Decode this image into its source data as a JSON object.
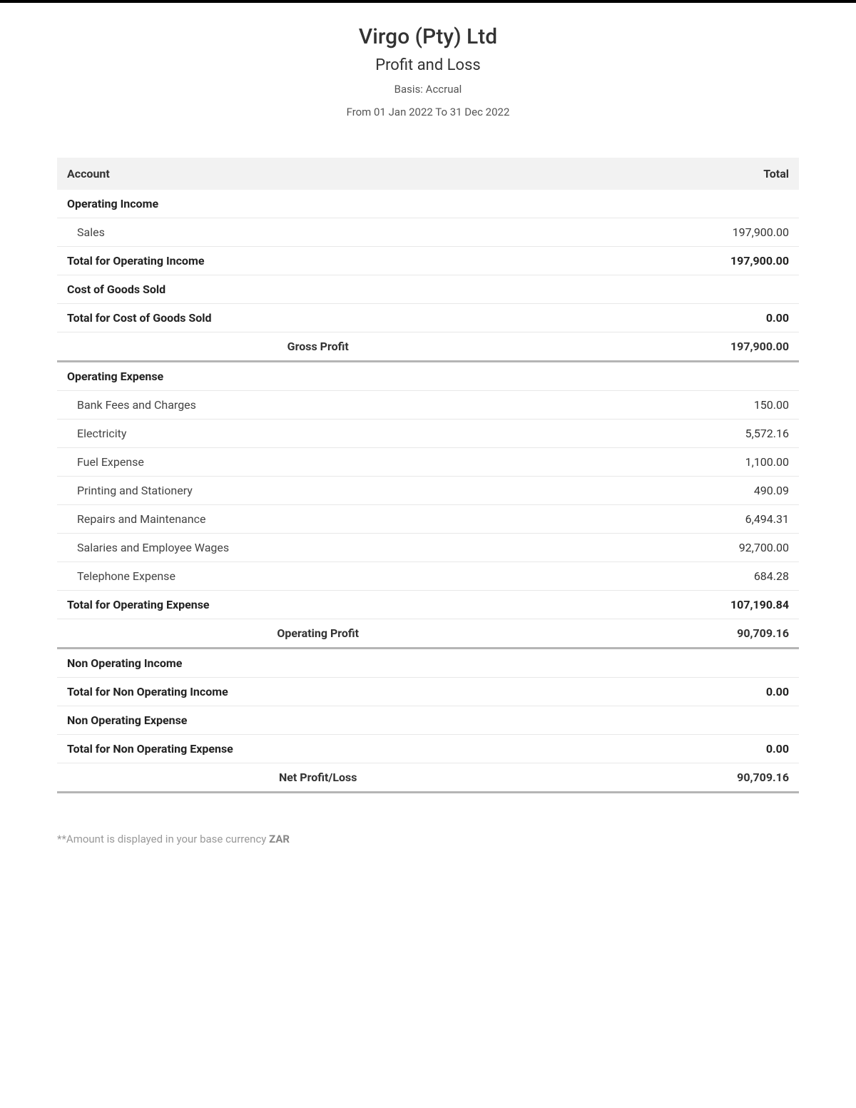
{
  "header": {
    "company_name": "Virgo (Pty) Ltd",
    "report_title": "Profit and Loss",
    "basis": "Basis: Accrual",
    "date_range": "From 01 Jan 2022 To 31 Dec 2022"
  },
  "table": {
    "columns": {
      "account": "Account",
      "total": "Total"
    },
    "sections": {
      "operating_income": {
        "label": "Operating Income",
        "items": {
          "sales": {
            "label": "Sales",
            "amount": "197,900.00"
          }
        },
        "total_label": "Total for Operating Income",
        "total_amount": "197,900.00"
      },
      "cogs": {
        "label": "Cost of Goods Sold",
        "total_label": "Total for Cost of Goods Sold",
        "total_amount": "0.00"
      },
      "gross_profit": {
        "label": "Gross Profit",
        "amount": "197,900.00"
      },
      "operating_expense": {
        "label": "Operating Expense",
        "items": {
          "bank_fees": {
            "label": "Bank Fees and Charges",
            "amount": "150.00"
          },
          "electricity": {
            "label": "Electricity",
            "amount": "5,572.16"
          },
          "fuel": {
            "label": "Fuel Expense",
            "amount": "1,100.00"
          },
          "printing": {
            "label": "Printing and Stationery",
            "amount": "490.09"
          },
          "repairs": {
            "label": "Repairs and Maintenance",
            "amount": "6,494.31"
          },
          "salaries": {
            "label": "Salaries and Employee Wages",
            "amount": "92,700.00"
          },
          "telephone": {
            "label": "Telephone Expense",
            "amount": "684.28"
          }
        },
        "total_label": "Total for Operating Expense",
        "total_amount": "107,190.84"
      },
      "operating_profit": {
        "label": "Operating Profit",
        "amount": "90,709.16"
      },
      "non_operating_income": {
        "label": "Non Operating Income",
        "total_label": "Total for Non Operating Income",
        "total_amount": "0.00"
      },
      "non_operating_expense": {
        "label": "Non Operating Expense",
        "total_label": "Total for Non Operating Expense",
        "total_amount": "0.00"
      },
      "net_profit": {
        "label": "Net Profit/Loss",
        "amount": "90,709.16"
      }
    }
  },
  "footer": {
    "note_prefix": "**Amount is displayed in your base currency ",
    "currency": "ZAR"
  }
}
